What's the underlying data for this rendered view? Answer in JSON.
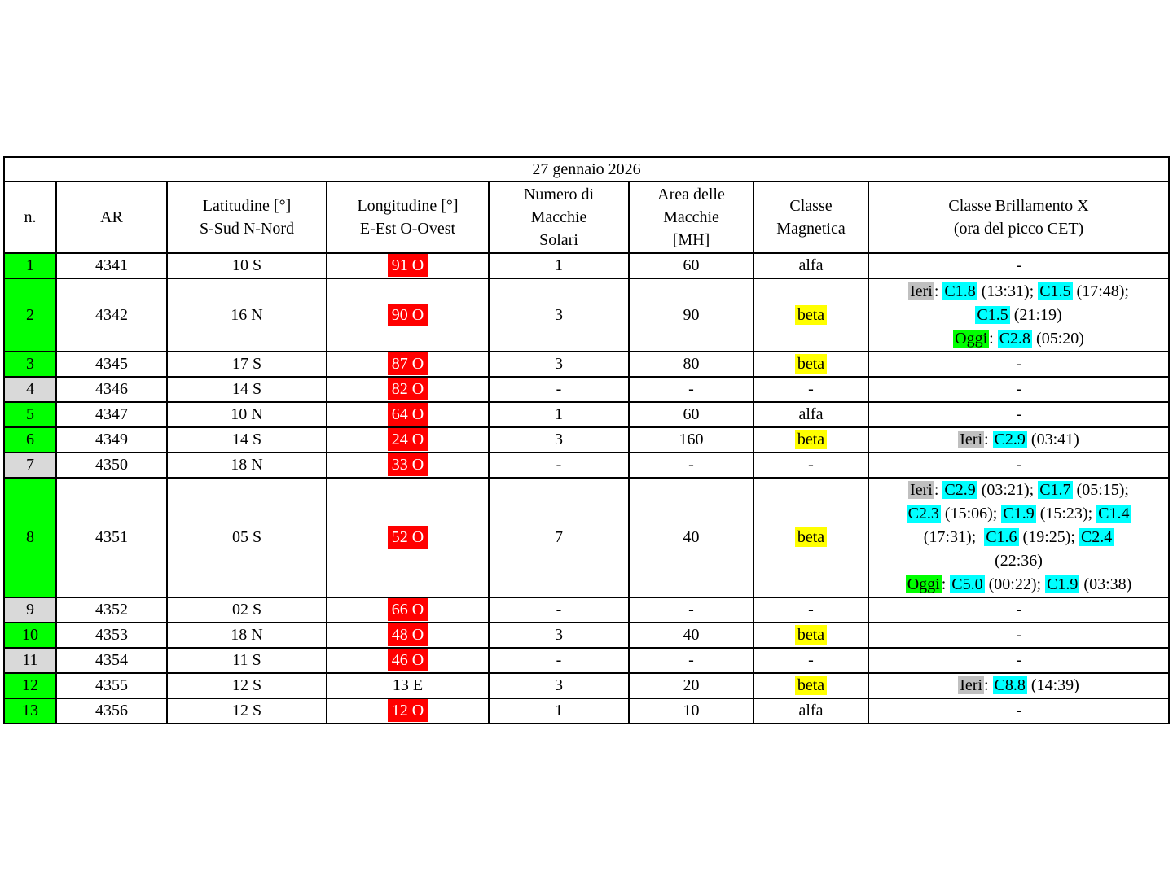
{
  "title": "27 gennaio 2026",
  "columns": [
    {
      "lines": [
        "n."
      ]
    },
    {
      "lines": [
        "AR"
      ]
    },
    {
      "lines": [
        "Latitudine [°]",
        "S-Sud N-Nord"
      ]
    },
    {
      "lines": [
        "Longitudine [°]",
        "E-Est O-Ovest"
      ]
    },
    {
      "lines": [
        "Numero di",
        "Macchie",
        "Solari"
      ]
    },
    {
      "lines": [
        "Area delle",
        "Macchie",
        "[MH]"
      ]
    },
    {
      "lines": [
        "Classe",
        "Magnetica"
      ]
    },
    {
      "lines": [
        "Classe Brillamento X",
        "(ora del picco CET)"
      ]
    }
  ],
  "colors": {
    "row_green": "#00FF00",
    "row_gray": "#D9D9D9",
    "longitude_red": "#FF0000",
    "beta_yellow": "#FFFF00",
    "flare_cyan": "#00FFFF",
    "ieri_gray": "#C0C0C0",
    "oggi_green": "#00FF00"
  },
  "rows": [
    {
      "n": "1",
      "n_color": "green",
      "ar": "4341",
      "lat": "10 S",
      "lon": "91 O",
      "lon_red": true,
      "spots": "1",
      "area": "60",
      "mag": "alfa",
      "mag_beta": false,
      "size": "s",
      "flare": [
        [
          {
            "t": "-"
          }
        ]
      ]
    },
    {
      "n": "2",
      "n_color": "green",
      "ar": "4342",
      "lat": "16 N",
      "lon": "90 O",
      "lon_red": true,
      "spots": "3",
      "area": "90",
      "mag": "beta",
      "mag_beta": true,
      "size": "m",
      "flare": [
        [
          {
            "t": "Ieri",
            "h": "gray"
          },
          {
            "t": ": "
          },
          {
            "t": "C1.8",
            "h": "cyan"
          },
          {
            "t": " (13:31); "
          },
          {
            "t": "C1.5",
            "h": "cyan"
          },
          {
            "t": " (17:48);"
          }
        ],
        [
          {
            "t": "C1.5",
            "h": "cyan"
          },
          {
            "t": " (21:19)"
          }
        ],
        [
          {
            "t": "Oggi",
            "h": "green"
          },
          {
            "t": ": "
          },
          {
            "t": "C2.8",
            "h": "cyan"
          },
          {
            "t": " (05:20)"
          }
        ]
      ]
    },
    {
      "n": "3",
      "n_color": "green",
      "ar": "4345",
      "lat": "17 S",
      "lon": "87 O",
      "lon_red": true,
      "spots": "3",
      "area": "80",
      "mag": "beta",
      "mag_beta": true,
      "size": "s",
      "flare": [
        [
          {
            "t": "-"
          }
        ]
      ]
    },
    {
      "n": "4",
      "n_color": "gray",
      "ar": "4346",
      "lat": "14 S",
      "lon": "82 O",
      "lon_red": true,
      "spots": "-",
      "area": "-",
      "mag": "-",
      "mag_beta": false,
      "size": "s",
      "flare": [
        [
          {
            "t": "-"
          }
        ]
      ]
    },
    {
      "n": "5",
      "n_color": "green",
      "ar": "4347",
      "lat": "10 N",
      "lon": "64 O",
      "lon_red": true,
      "spots": "1",
      "area": "60",
      "mag": "alfa",
      "mag_beta": false,
      "size": "s",
      "flare": [
        [
          {
            "t": "-"
          }
        ]
      ]
    },
    {
      "n": "6",
      "n_color": "green",
      "ar": "4349",
      "lat": "14 S",
      "lon": "24 O",
      "lon_red": true,
      "spots": "3",
      "area": "160",
      "mag": "beta",
      "mag_beta": true,
      "size": "s",
      "flare": [
        [
          {
            "t": "Ieri",
            "h": "gray"
          },
          {
            "t": ": "
          },
          {
            "t": "C2.9",
            "h": "cyan"
          },
          {
            "t": " (03:41)"
          }
        ]
      ]
    },
    {
      "n": "7",
      "n_color": "gray",
      "ar": "4350",
      "lat": "18 N",
      "lon": "33 O",
      "lon_red": true,
      "spots": "-",
      "area": "-",
      "mag": "-",
      "mag_beta": false,
      "size": "s",
      "flare": [
        [
          {
            "t": "-"
          }
        ]
      ]
    },
    {
      "n": "8",
      "n_color": "green",
      "ar": "4351",
      "lat": "05 S",
      "lon": "52 O",
      "lon_red": true,
      "spots": "7",
      "area": "40",
      "mag": "beta",
      "mag_beta": true,
      "size": "l",
      "flare": [
        [
          {
            "t": "Ieri",
            "h": "gray"
          },
          {
            "t": ": "
          },
          {
            "t": "C2.9",
            "h": "cyan"
          },
          {
            "t": " (03:21); "
          },
          {
            "t": "C1.7",
            "h": "cyan"
          },
          {
            "t": " (05:15);"
          }
        ],
        [
          {
            "t": "C2.3",
            "h": "cyan"
          },
          {
            "t": " (15:06); "
          },
          {
            "t": "C1.9",
            "h": "cyan"
          },
          {
            "t": " (15:23); "
          },
          {
            "t": "C1.4",
            "h": "cyan"
          }
        ],
        [
          {
            "t": "(17:31);  "
          },
          {
            "t": "C1.6",
            "h": "cyan"
          },
          {
            "t": " (19:25); "
          },
          {
            "t": "C2.4",
            "h": "cyan"
          }
        ],
        [
          {
            "t": "(22:36)"
          }
        ],
        [
          {
            "t": "Oggi",
            "h": "green"
          },
          {
            "t": ": "
          },
          {
            "t": "C5.0",
            "h": "cyan"
          },
          {
            "t": " (00:22); "
          },
          {
            "t": "C1.9",
            "h": "cyan"
          },
          {
            "t": " (03:38)"
          }
        ]
      ]
    },
    {
      "n": "9",
      "n_color": "gray",
      "ar": "4352",
      "lat": "02 S",
      "lon": "66 O",
      "lon_red": true,
      "spots": "-",
      "area": "-",
      "mag": "-",
      "mag_beta": false,
      "size": "s",
      "flare": [
        [
          {
            "t": "-"
          }
        ]
      ]
    },
    {
      "n": "10",
      "n_color": "green",
      "ar": "4353",
      "lat": "18 N",
      "lon": "48 O",
      "lon_red": true,
      "spots": "3",
      "area": "40",
      "mag": "beta",
      "mag_beta": true,
      "size": "s",
      "flare": [
        [
          {
            "t": "-"
          }
        ]
      ]
    },
    {
      "n": "11",
      "n_color": "gray",
      "ar": "4354",
      "lat": "11 S",
      "lon": "46 O",
      "lon_red": true,
      "spots": "-",
      "area": "-",
      "mag": "-",
      "mag_beta": false,
      "size": "s",
      "flare": [
        [
          {
            "t": "-"
          }
        ]
      ]
    },
    {
      "n": "12",
      "n_color": "green",
      "ar": "4355",
      "lat": "12 S",
      "lon": "13 E",
      "lon_red": false,
      "spots": "3",
      "area": "20",
      "mag": "beta",
      "mag_beta": true,
      "size": "s",
      "flare": [
        [
          {
            "t": "Ieri",
            "h": "gray"
          },
          {
            "t": ": "
          },
          {
            "t": "C8.8",
            "h": "cyan"
          },
          {
            "t": " (14:39)"
          }
        ]
      ]
    },
    {
      "n": "13",
      "n_color": "green",
      "ar": "4356",
      "lat": "12 S",
      "lon": "12 O",
      "lon_red": true,
      "spots": "1",
      "area": "10",
      "mag": "alfa",
      "mag_beta": false,
      "size": "s",
      "flare": [
        [
          {
            "t": "-"
          }
        ]
      ]
    }
  ]
}
